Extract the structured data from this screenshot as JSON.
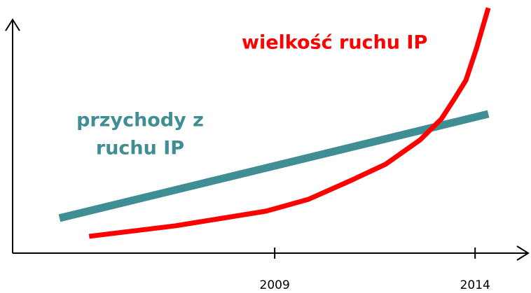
{
  "chart_data": {
    "type": "line",
    "xlim": [
      2002.46,
      2015.29
    ],
    "xticks": [
      2009,
      2014
    ],
    "ylim": [
      0,
      100
    ],
    "series": [
      {
        "name": "wielkość ruchu IP",
        "color": "#ff0000",
        "x": [
          2004.37,
          2006.52,
          2008.79,
          2009.85,
          2010.9,
          2011.76,
          2012.63,
          2013.16,
          2013.5,
          2013.77,
          2014.03,
          2014.33
        ],
        "values": [
          7.2,
          11.7,
          18.0,
          23.1,
          31.1,
          38.0,
          48.5,
          57.5,
          66.5,
          74.0,
          87.4,
          105
        ]
      },
      {
        "label_lines": [
          "przychody z",
          "ruchu IP"
        ],
        "color": "#3e8e93",
        "x": [
          2003.63,
          2014.33
        ],
        "values": [
          15.0,
          59.6
        ]
      }
    ]
  }
}
